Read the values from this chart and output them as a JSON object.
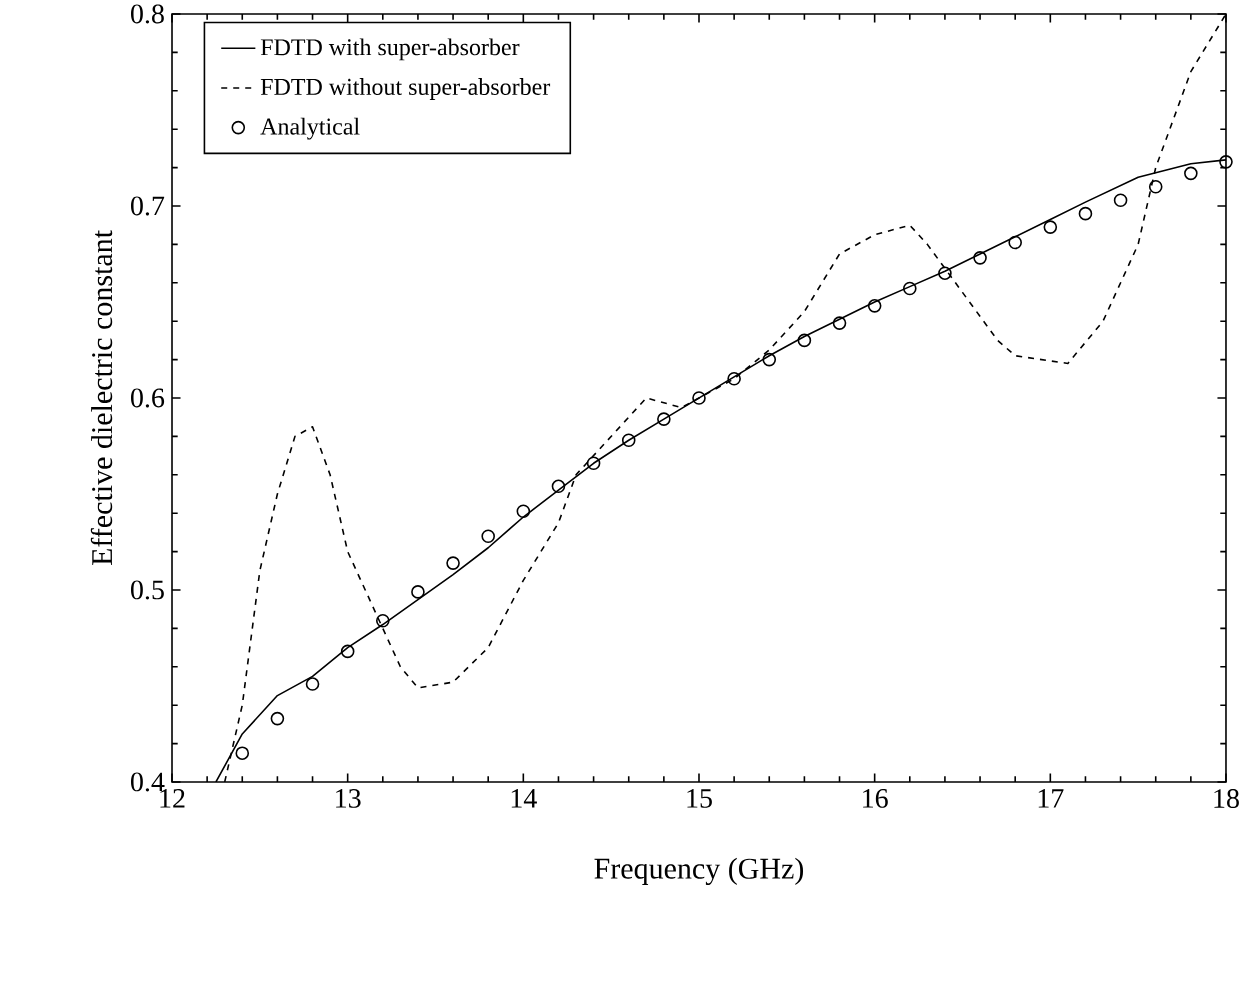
{
  "chart_data": {
    "type": "line",
    "xlabel": "Frequency (GHz)",
    "ylabel": "Effective dielectric constant",
    "xlim": [
      12,
      18
    ],
    "ylim": [
      0.4,
      0.8
    ],
    "xticks": [
      12,
      13,
      14,
      15,
      16,
      17,
      18
    ],
    "yticks": [
      0.4,
      0.5,
      0.6,
      0.7,
      0.8
    ],
    "legend": "top left",
    "series": [
      {
        "name": "FDTD with super-absorber",
        "color": "#000000",
        "line_style": "solid",
        "marker": "none",
        "x": [
          12.25,
          12.4,
          12.6,
          12.8,
          13.0,
          13.2,
          13.4,
          13.6,
          13.8,
          14.0,
          14.2,
          14.4,
          14.6,
          14.8,
          15.0,
          15.2,
          15.4,
          15.6,
          15.8,
          16.0,
          16.2,
          16.4,
          16.6,
          16.8,
          17.0,
          17.2,
          17.5,
          17.8,
          18.0
        ],
        "values": [
          0.4,
          0.425,
          0.445,
          0.455,
          0.47,
          0.482,
          0.495,
          0.508,
          0.522,
          0.538,
          0.552,
          0.566,
          0.578,
          0.589,
          0.6,
          0.611,
          0.622,
          0.632,
          0.641,
          0.65,
          0.658,
          0.666,
          0.675,
          0.684,
          0.693,
          0.702,
          0.715,
          0.722,
          0.724
        ]
      },
      {
        "name": "FDTD without super-absorber",
        "color": "#000000",
        "line_style": "dashed",
        "marker": "none",
        "x": [
          12.3,
          12.4,
          12.5,
          12.6,
          12.7,
          12.8,
          12.9,
          13.0,
          13.2,
          13.3,
          13.4,
          13.6,
          13.8,
          14.0,
          14.2,
          14.3,
          14.5,
          14.7,
          14.9,
          15.0,
          15.2,
          15.4,
          15.6,
          15.8,
          16.0,
          16.2,
          16.3,
          16.5,
          16.7,
          16.8,
          17.1,
          17.3,
          17.5,
          17.6,
          17.8,
          18.0
        ],
        "values": [
          0.4,
          0.44,
          0.51,
          0.55,
          0.58,
          0.585,
          0.56,
          0.52,
          0.48,
          0.46,
          0.449,
          0.452,
          0.47,
          0.505,
          0.535,
          0.56,
          0.58,
          0.6,
          0.595,
          0.6,
          0.61,
          0.625,
          0.645,
          0.675,
          0.685,
          0.69,
          0.68,
          0.655,
          0.63,
          0.622,
          0.618,
          0.64,
          0.68,
          0.72,
          0.77,
          0.8
        ]
      },
      {
        "name": "Analytical",
        "type": "scatter",
        "color": "#000000",
        "marker": "circle",
        "x": [
          12.4,
          12.6,
          12.8,
          13.0,
          13.2,
          13.4,
          13.6,
          13.8,
          14.0,
          14.2,
          14.4,
          14.6,
          14.8,
          15.0,
          15.2,
          15.4,
          15.6,
          15.8,
          16.0,
          16.2,
          16.4,
          16.6,
          16.8,
          17.0,
          17.2,
          17.4,
          17.6,
          17.8,
          18.0
        ],
        "values": [
          0.415,
          0.433,
          0.451,
          0.468,
          0.484,
          0.499,
          0.514,
          0.528,
          0.541,
          0.554,
          0.566,
          0.578,
          0.589,
          0.6,
          0.61,
          0.62,
          0.63,
          0.639,
          0.648,
          0.657,
          0.665,
          0.673,
          0.681,
          0.689,
          0.696,
          0.703,
          0.71,
          0.717,
          0.723
        ]
      }
    ]
  }
}
